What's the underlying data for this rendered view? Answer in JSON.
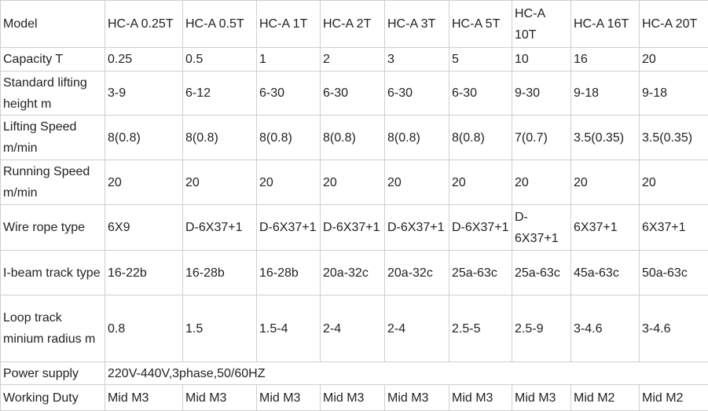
{
  "table": {
    "header": [
      "Model",
      "HC-A 0.25T",
      "HC-A 0.5T",
      "HC-A 1T",
      "HC-A 2T",
      "HC-A 3T",
      "HC-A 5T",
      "HC-A 10T",
      "HC-A 16T",
      "HC-A 20T"
    ],
    "rows": [
      {
        "label": "Capacity T",
        "cells": [
          "0.25",
          "0.5",
          "1",
          "2",
          "3",
          "5",
          "10",
          "16",
          "20"
        ]
      },
      {
        "label": "Standard lifting height m",
        "cells": [
          "3-9",
          "6-12",
          "6-30",
          "6-30",
          "6-30",
          "6-30",
          "9-30",
          "9-18",
          "9-18"
        ]
      },
      {
        "label": "Lifting Speed m/min",
        "cells": [
          "8(0.8)",
          "8(0.8)",
          "8(0.8)",
          "8(0.8)",
          "8(0.8)",
          "8(0.8)",
          "7(0.7)",
          "3.5(0.35)",
          "3.5(0.35)"
        ]
      },
      {
        "label": "Running Speed m/min",
        "cells": [
          "20",
          "20",
          "20",
          "20",
          "20",
          "20",
          "20",
          "20",
          "20"
        ]
      },
      {
        "label": "Wire rope type",
        "cells": [
          "6X9",
          "D-6X37+1",
          "D-6X37+1",
          "D-6X37+1",
          "D-6X37+1",
          "D-6X37+1",
          "D-6X37+1",
          "6X37+1",
          "6X37+1"
        ]
      },
      {
        "label": "I-beam track type",
        "cells": [
          "16-22b",
          "16-28b",
          "16-28b",
          "20a-32c",
          "20a-32c",
          "25a-63c",
          "25a-63c",
          "45a-63c",
          "50a-63c"
        ]
      },
      {
        "label": "Loop track minium radius m",
        "cells": [
          "0.8",
          "1.5",
          "1.5-4",
          "2-4",
          "2-4",
          "2.5-5",
          "2.5-9",
          "3-4.6",
          "3-4.6"
        ]
      },
      {
        "label": "Power supply",
        "cells": [
          "220V-440V,3phase,50/60HZ"
        ]
      },
      {
        "label": "Working Duty",
        "cells": [
          "Mid M3",
          "Mid M3",
          "Mid M3",
          "Mid M3",
          "Mid M3",
          "Mid M3",
          "Mid M3",
          "Mid M2",
          "Mid M2"
        ]
      }
    ]
  }
}
